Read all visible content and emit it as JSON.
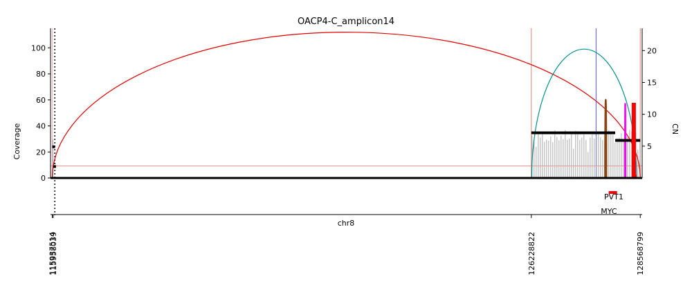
{
  "chart_data": {
    "type": "area",
    "title": "OACP4-C_amplicon14",
    "xlabel": "chr8",
    "ylabel_left": "Coverage",
    "ylabel_right": "CN",
    "xlim": [
      115900000,
      128610000
    ],
    "ylim_left": [
      0,
      115
    ],
    "ylim_right": [
      0,
      23.5
    ],
    "yticks_left": [
      0,
      20,
      40,
      60,
      80,
      100
    ],
    "yticks_right": [
      5,
      10,
      15,
      20
    ],
    "segment_boundaries": [
      "115937514",
      "115958039",
      "126228822",
      "128568799"
    ],
    "gap_marker_x": 115993000,
    "coverage_segments": [
      {
        "start": 115937514,
        "end": 115958039,
        "mean": 30
      },
      {
        "start": 126228822,
        "end": 128568799,
        "mean": 32
      }
    ],
    "cn_segments": [
      {
        "start": 115937514,
        "end": 115958039,
        "cn": 4.9
      },
      {
        "start": 115958039,
        "end": 115958500,
        "cn": 1.8
      },
      {
        "start": 126228822,
        "end": 128030000,
        "cn": 7.1
      },
      {
        "start": 128030000,
        "end": 128568799,
        "cn": 5.9
      },
      {
        "start": 128428000,
        "end": 128444000,
        "cn": 0.3
      }
    ],
    "cn_focal_peak": {
      "x": 128430000,
      "cn": 11.8
    },
    "cn_threshold": 1.9,
    "breakpoints": [
      {
        "x1": 115937514,
        "x2": 128568799,
        "height": 112,
        "color": "#e00000"
      },
      {
        "x1": 126236000,
        "x2": 128490000,
        "height": 99,
        "color": "#009090"
      },
      {
        "x1": 127814000,
        "x2": 127840000,
        "height": 60,
        "color": "#8b4513"
      },
      {
        "x1": 128242000,
        "x2": 128250000,
        "height": 57,
        "color": "#ff00ff"
      }
    ],
    "vertical_lines": [
      {
        "x": 115937514,
        "color": "#ffb0c0"
      },
      {
        "x": 126228822,
        "color": "#f08070"
      },
      {
        "x": 127620000,
        "color": "#5555ff"
      },
      {
        "x": 128568799,
        "color": "#f08070"
      }
    ],
    "genes": [
      {
        "name": "MYC",
        "start": 127890000,
        "end": 127900000
      },
      {
        "name": "PVT1",
        "start": 127930000,
        "end": 128070000
      }
    ],
    "colors": {
      "coverage": "#aaaaaa",
      "cn": "#000000",
      "gene": "#ff0000",
      "threshold": "#ff8080"
    }
  }
}
